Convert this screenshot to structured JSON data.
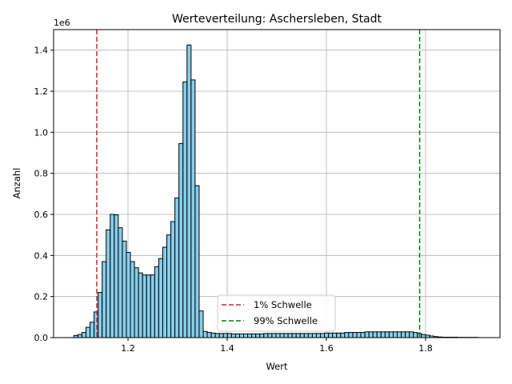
{
  "chart_data": {
    "type": "histogram",
    "title": "Werteverteilung: Aschersleben, Stadt",
    "xlabel": "Wert",
    "ylabel": "Anzahl",
    "y_scale_label": "1e6",
    "xlim": [
      1.05,
      1.95
    ],
    "ylim": [
      0,
      1.5
    ],
    "x_ticks": [
      1.2,
      1.4,
      1.6,
      1.8
    ],
    "x_tick_labels": [
      "1.2",
      "1.4",
      "1.6",
      "1.8"
    ],
    "y_ticks": [
      0,
      0.2,
      0.4,
      0.6,
      0.8,
      1.0,
      1.2,
      1.4
    ],
    "y_tick_labels": [
      "0.0",
      "0.2",
      "0.4",
      "0.6",
      "0.8",
      "1.0",
      "1.2",
      "1.4"
    ],
    "grid": true,
    "bar_color": "#87ceeb",
    "bar_edge_color": "#000000",
    "bin_start": 1.0908,
    "bin_width": 0.00815,
    "counts": [
      0.01,
      0.015,
      0.025,
      0.05,
      0.075,
      0.125,
      0.22,
      0.37,
      0.525,
      0.6,
      0.598,
      0.535,
      0.47,
      0.415,
      0.37,
      0.34,
      0.315,
      0.305,
      0.305,
      0.305,
      0.345,
      0.385,
      0.44,
      0.5,
      0.565,
      0.68,
      0.945,
      1.245,
      1.425,
      1.255,
      0.74,
      0.13,
      0.03,
      0.025,
      0.022,
      0.02,
      0.02,
      0.02,
      0.02,
      0.018,
      0.018,
      0.018,
      0.018,
      0.018,
      0.018,
      0.018,
      0.018,
      0.02,
      0.02,
      0.02,
      0.02,
      0.02,
      0.02,
      0.02,
      0.02,
      0.02,
      0.02,
      0.02,
      0.02,
      0.02,
      0.02,
      0.02,
      0.022,
      0.022,
      0.022,
      0.022,
      0.022,
      0.025,
      0.025,
      0.025,
      0.025,
      0.025,
      0.028,
      0.028,
      0.028,
      0.028,
      0.028,
      0.028,
      0.028,
      0.028,
      0.028,
      0.028,
      0.028,
      0.028,
      0.025,
      0.02,
      0.015,
      0.012,
      0.008,
      0.005,
      0.003,
      0.002,
      0.002,
      0.002,
      0.002,
      0.001,
      0.001,
      0.001,
      0.001,
      0.001
    ],
    "vlines": [
      {
        "name": "1% Schwelle",
        "x": 1.137,
        "color": "#d62728",
        "style": "dashed"
      },
      {
        "name": "99% Schwelle",
        "x": 1.788,
        "color": "#008000",
        "style": "dashed"
      }
    ],
    "legend_position": "lower center"
  }
}
